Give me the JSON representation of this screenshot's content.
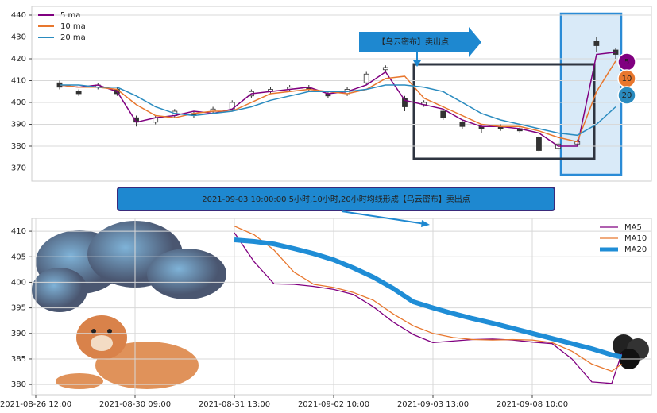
{
  "banner": "2021-09-03 10:00:00 5小时,10小时,20小时均线形成【乌云密布】卖出点",
  "chart_data": [
    {
      "type": "candlestick",
      "signal_label": "【乌云密布】卖出点",
      "badges": [
        "5",
        "10",
        "20"
      ],
      "legend": "upper left",
      "grid": true,
      "up_color": "#ffffff",
      "down_color": "#333333",
      "ylim": [
        364,
        444
      ],
      "yticks": [
        370,
        380,
        390,
        400,
        410,
        420,
        430,
        440
      ],
      "open": [
        409,
        405,
        407,
        406,
        393,
        391,
        394,
        395,
        396,
        397,
        403,
        405,
        406,
        407,
        404,
        404,
        409,
        415,
        402,
        399,
        396,
        391,
        389,
        389,
        388,
        384,
        379,
        381,
        428,
        424
      ],
      "close": [
        407,
        404,
        408,
        404,
        391,
        393,
        396,
        394,
        397,
        400,
        405,
        406,
        407,
        406,
        403,
        406,
        413,
        416,
        398,
        400,
        393,
        389,
        388,
        388,
        387,
        378,
        381,
        382,
        426,
        422
      ],
      "high": [
        410,
        406,
        409,
        407,
        394,
        394,
        397,
        396,
        398,
        401,
        406,
        407,
        408,
        408,
        405,
        407,
        414,
        417,
        403,
        401,
        397,
        392,
        390,
        390,
        389,
        385,
        382,
        383,
        430,
        425
      ],
      "low": [
        406,
        403,
        406,
        403,
        389,
        390,
        393,
        393,
        395,
        396,
        402,
        404,
        405,
        405,
        402,
        403,
        408,
        414,
        396,
        398,
        392,
        388,
        386,
        387,
        386,
        377,
        378,
        380,
        423,
        420
      ],
      "series": [
        {
          "name": "5 ma",
          "color": "#800080",
          "width": 1.5,
          "values": [
            408,
            407,
            408,
            405,
            391,
            393,
            394,
            396,
            395,
            397,
            404,
            405,
            406,
            407,
            404,
            405,
            408,
            414,
            401,
            399,
            397,
            392,
            389,
            389,
            388,
            386,
            380,
            380,
            422,
            423
          ]
        },
        {
          "name": "10 ma",
          "color": "#e8772e",
          "width": 1.5,
          "values": [
            408,
            407,
            407,
            406,
            399,
            394,
            393,
            395,
            396,
            396,
            400,
            404,
            405,
            406,
            405,
            404,
            406,
            411,
            412,
            402,
            398,
            394,
            390,
            389,
            389,
            387,
            384,
            382,
            405,
            419
          ]
        },
        {
          "name": "20 ma",
          "color": "#2a8bbf",
          "width": 1.5,
          "values": [
            408,
            408,
            407,
            407,
            403,
            398,
            395,
            394,
            395,
            396,
            398,
            401,
            403,
            405,
            405,
            405,
            406,
            408,
            408,
            407,
            405,
            400,
            395,
            392,
            390,
            388,
            386,
            385,
            390,
            398
          ]
        }
      ]
    },
    {
      "type": "line",
      "legend": "upper right",
      "grid": true,
      "x": [
        20,
        22,
        24,
        26,
        28,
        30,
        32,
        34,
        36,
        38,
        40,
        42,
        44,
        46,
        48,
        50,
        52,
        54,
        56,
        58,
        59
      ],
      "xlim": [
        -0.4,
        62
      ],
      "xticks": [
        {
          "value": 0,
          "label": "2021-08-26 12:00"
        },
        {
          "value": 10,
          "label": "2021-08-30 09:00"
        },
        {
          "value": 20,
          "label": "2021-08-31 13:00"
        },
        {
          "value": 30,
          "label": "2021-09-02 10:00"
        },
        {
          "value": 40,
          "label": "2021-09-03 13:00"
        },
        {
          "value": 50,
          "label": "2021-09-08 10:00"
        }
      ],
      "ylim": [
        378,
        412.5
      ],
      "yticks": [
        380,
        385,
        390,
        395,
        400,
        405,
        410
      ],
      "series": [
        {
          "name": "MA5",
          "color": "#800080",
          "width": 1.3,
          "values": [
            409.7,
            404,
            399.7,
            399.6,
            399.2,
            398.6,
            397.6,
            395.2,
            392.2,
            389.8,
            388.2,
            388.5,
            388.8,
            388.9,
            388.7,
            388.3,
            388,
            385,
            380.5,
            380.2,
            386
          ]
        },
        {
          "name": "MA10",
          "color": "#e8772e",
          "width": 1.3,
          "values": [
            411,
            409.3,
            406.3,
            402,
            399.6,
            399,
            398,
            396.5,
            393.8,
            391.5,
            390,
            389.2,
            388.8,
            388.7,
            388.8,
            388.7,
            388.2,
            386.5,
            384,
            382.6,
            384
          ]
        },
        {
          "name": "MA20",
          "color": "#1f8dd6",
          "width": 6,
          "values": [
            408.3,
            408,
            407.5,
            406.6,
            405.6,
            404.4,
            402.8,
            401,
            398.8,
            396.2,
            395,
            393.9,
            392.9,
            392,
            391,
            390,
            389,
            388,
            387,
            385.8,
            385.4
          ]
        }
      ]
    }
  ]
}
